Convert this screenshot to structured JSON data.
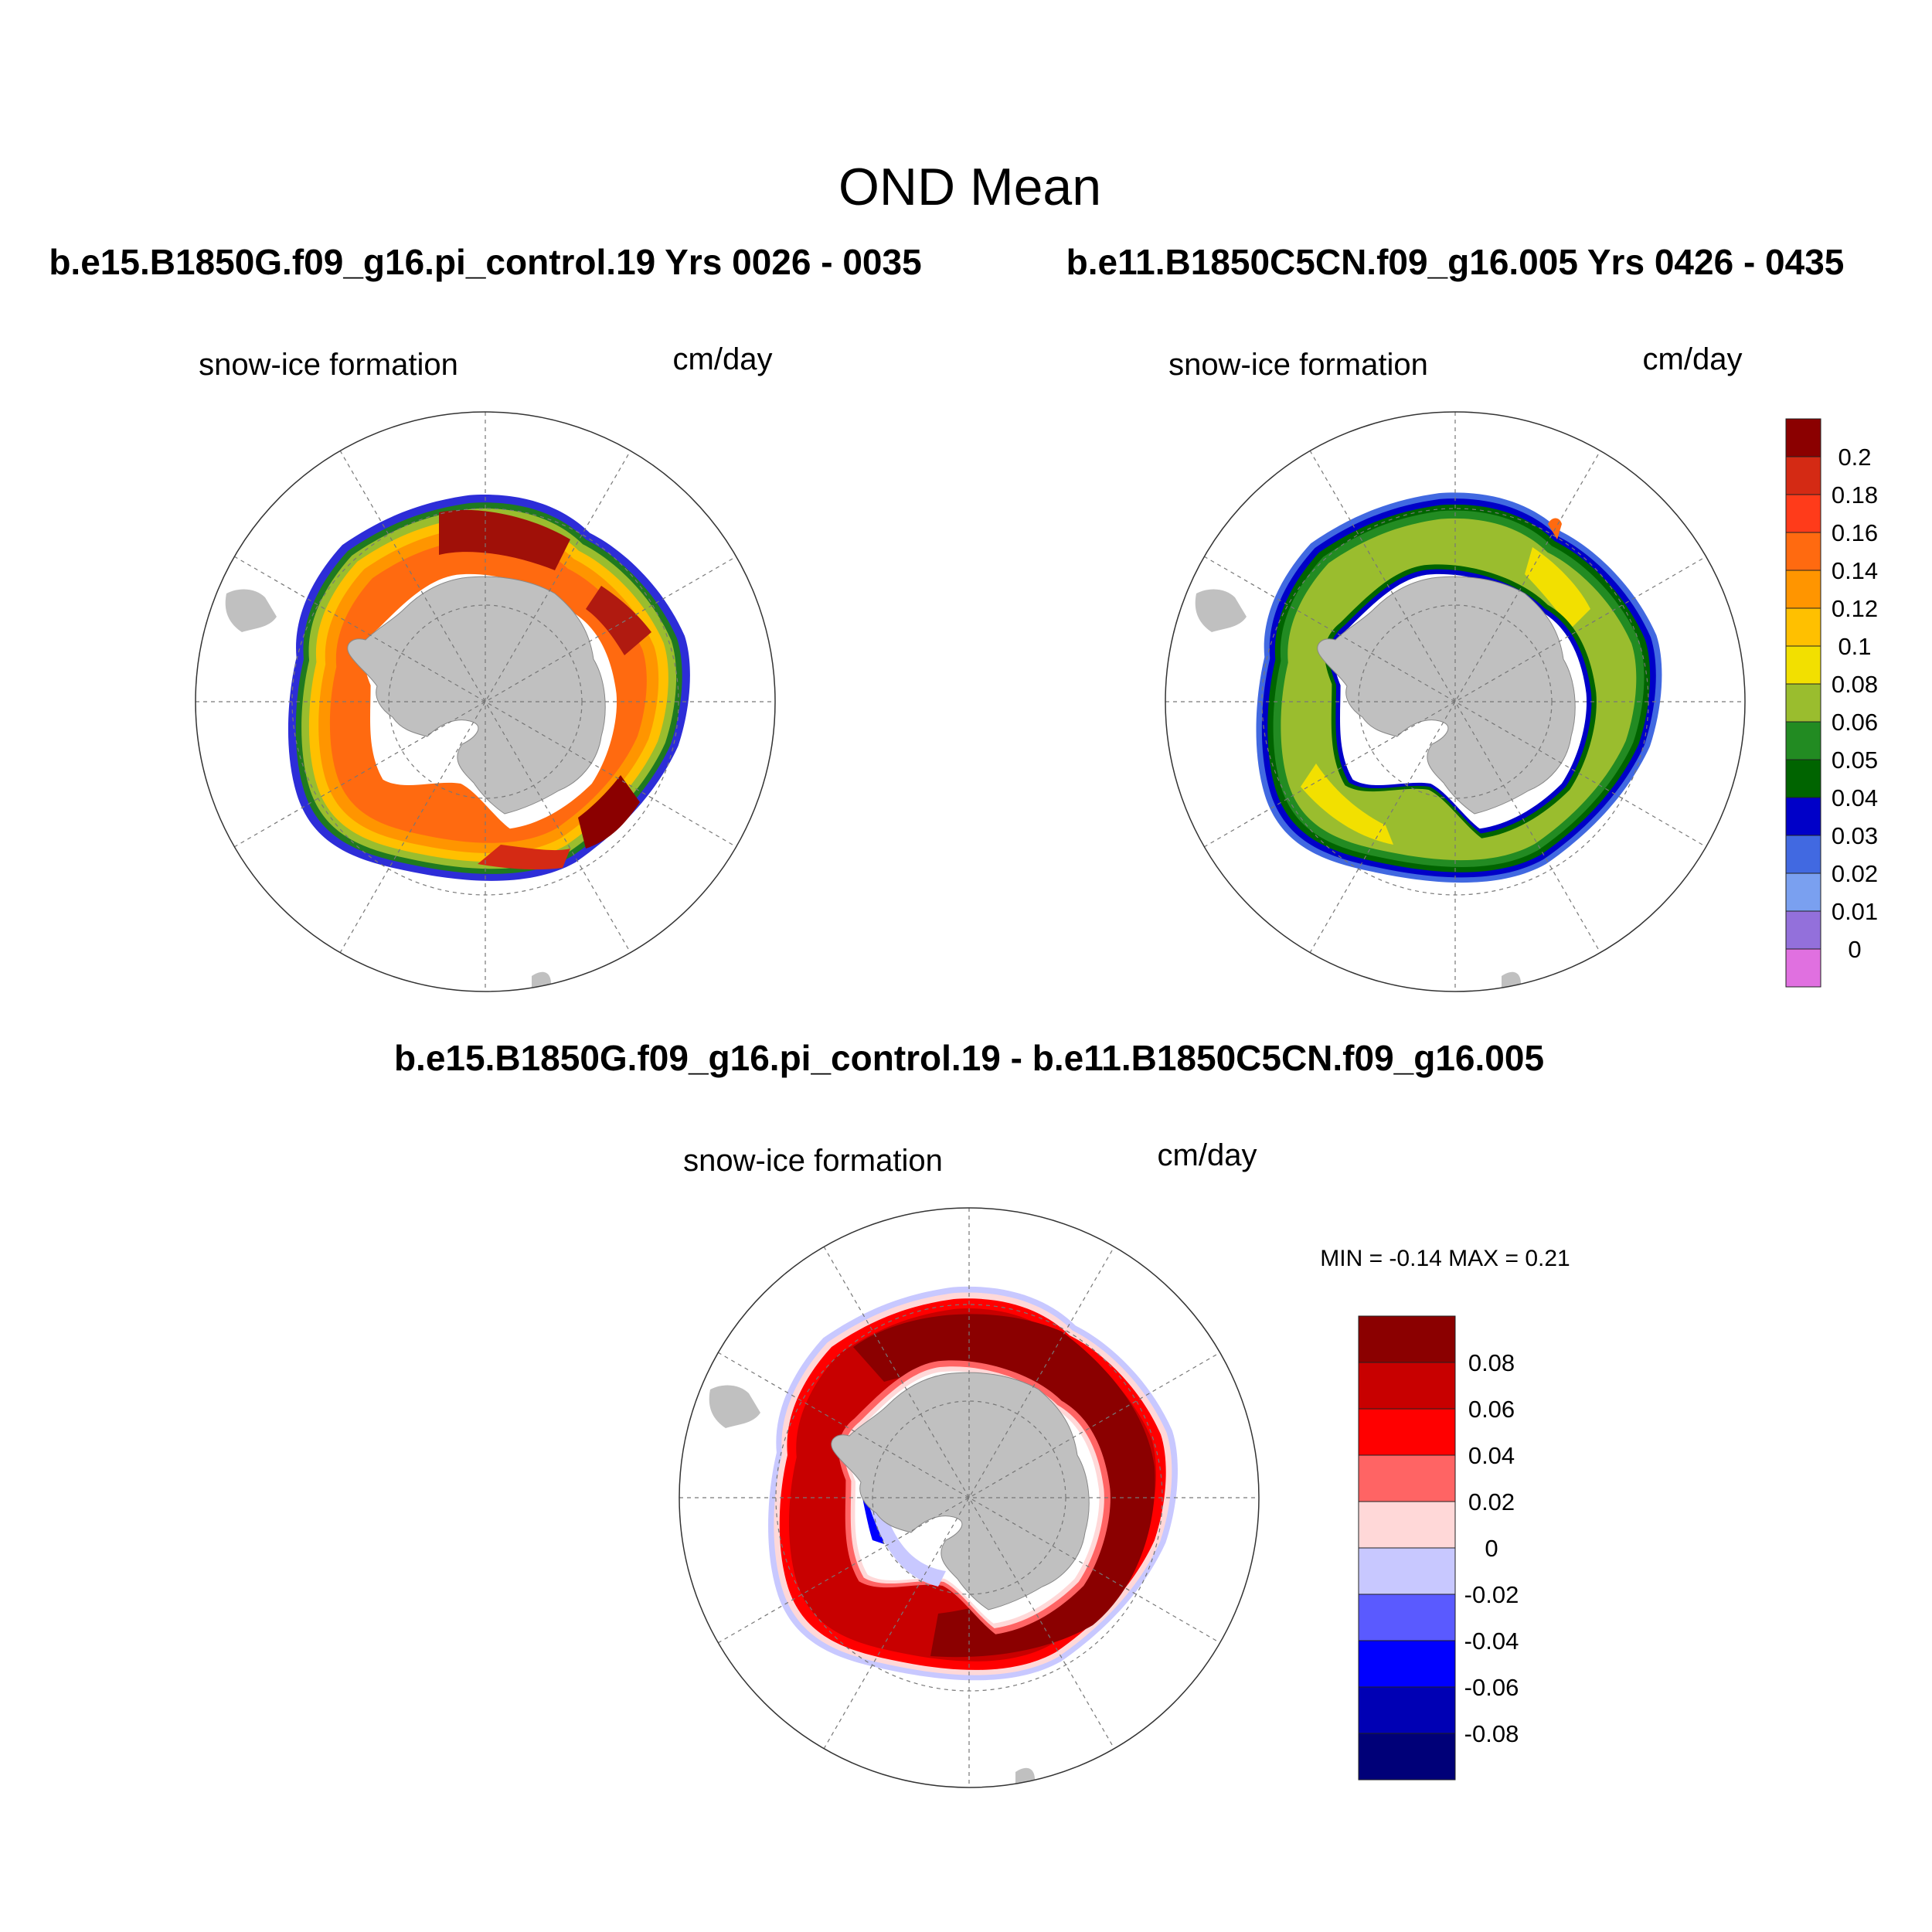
{
  "figure": {
    "title": "OND Mean",
    "left_title": "b.e15.B1850G.f09_g16.pi_control.19  Yrs 0026 - 0035",
    "right_title": "b.e11.B1850C5CN.f09_g16.005  Yrs 0426 - 0435",
    "diff_title": "b.e15.B1850G.f09_g16.pi_control.19 - b.e11.B1850C5CN.f09_g16.005"
  },
  "panels": {
    "left": {
      "variable": "snow-ice formation",
      "units": "cm/day"
    },
    "right": {
      "variable": "snow-ice formation",
      "units": "cm/day"
    },
    "diff": {
      "variable": "snow-ice formation",
      "units": "cm/day",
      "min_max": "MIN =  -0.14 MAX =   0.21"
    }
  },
  "colorbar_main": {
    "labels": [
      "0.2",
      "0.18",
      "0.16",
      "0.14",
      "0.12",
      "0.1",
      "0.08",
      "0.06",
      "0.05",
      "0.04",
      "0.03",
      "0.02",
      "0.01",
      "0"
    ],
    "colors": [
      "#8b0000",
      "#d42a14",
      "#ff3b1a",
      "#ff6a10",
      "#ff9500",
      "#ffc000",
      "#f2e000",
      "#9abd2e",
      "#228b22",
      "#006400",
      "#0000c8",
      "#4169e1",
      "#7aa0f0",
      "#9370db",
      "#e070e0"
    ]
  },
  "colorbar_diff": {
    "labels": [
      "0.08",
      "0.06",
      "0.04",
      "0.02",
      "0",
      "-0.02",
      "-0.04",
      "-0.06",
      "-0.08"
    ],
    "colors": [
      "#8b0000",
      "#c80000",
      "#ff0000",
      "#ff6464",
      "#ffd8d8",
      "#c8c8ff",
      "#5a5aff",
      "#0000ff",
      "#0000b4",
      "#000078"
    ]
  }
}
